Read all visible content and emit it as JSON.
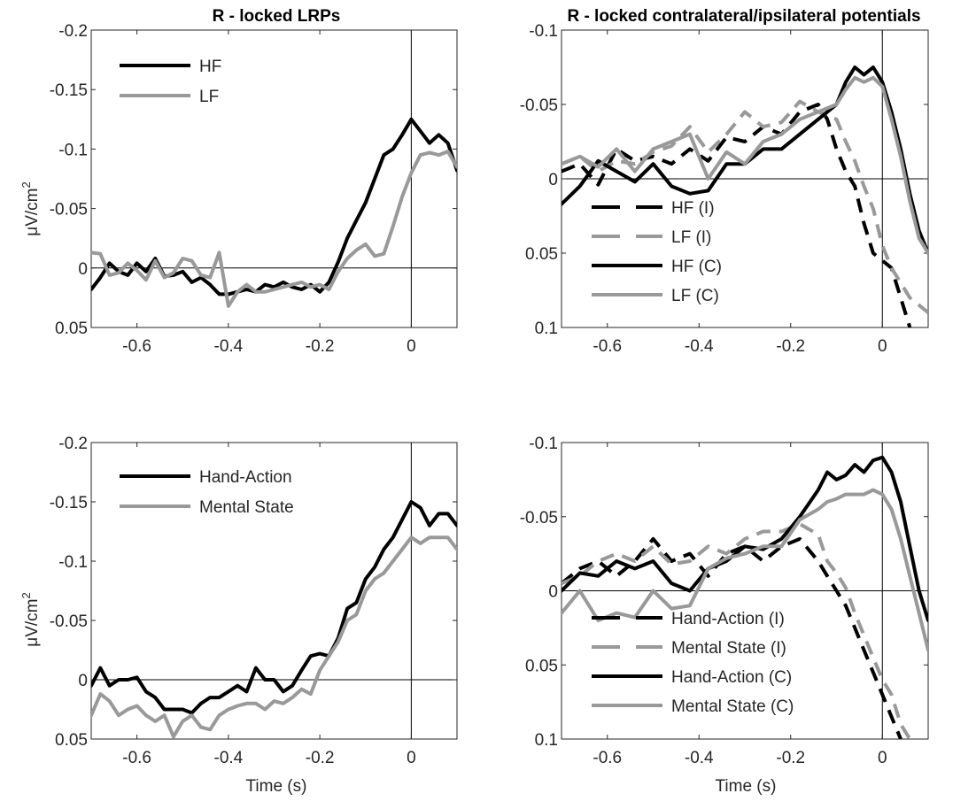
{
  "chart_data": [
    {
      "type": "line",
      "title": "R - locked LRPs",
      "xlabel": "",
      "ylabel": "μV/cm",
      "ylabel_sup": "2",
      "xlim": [
        -0.7,
        0.1
      ],
      "ylim": [
        -0.2,
        0.05
      ],
      "y_reversed": true,
      "xticks": [
        -0.6,
        -0.4,
        -0.2,
        0
      ],
      "xtick_labels": [
        "-0.6",
        "-0.4",
        "-0.2",
        "0"
      ],
      "yticks": [
        -0.2,
        -0.15,
        -0.1,
        -0.05,
        0,
        0.05
      ],
      "ytick_labels": [
        "-0.2",
        "-0.15",
        "-0.1",
        "-0.05",
        "0",
        "0.05"
      ],
      "legend_position": "top-left",
      "series": [
        {
          "name": "HF",
          "color": "#000000",
          "dash": "solid",
          "x": [
            -0.7,
            -0.68,
            -0.66,
            -0.64,
            -0.62,
            -0.6,
            -0.58,
            -0.56,
            -0.54,
            -0.52,
            -0.5,
            -0.48,
            -0.46,
            -0.44,
            -0.42,
            -0.4,
            -0.38,
            -0.36,
            -0.34,
            -0.32,
            -0.3,
            -0.28,
            -0.26,
            -0.24,
            -0.22,
            -0.2,
            -0.18,
            -0.16,
            -0.14,
            -0.12,
            -0.1,
            -0.08,
            -0.06,
            -0.04,
            -0.02,
            0,
            0.02,
            0.04,
            0.06,
            0.08,
            0.1
          ],
          "y": [
            0.018,
            0.008,
            -0.004,
            0.003,
            0.006,
            -0.004,
            0.003,
            -0.008,
            0.007,
            0.006,
            0.003,
            0.012,
            0.008,
            0.014,
            0.022,
            0.022,
            0.02,
            0.018,
            0.02,
            0.014,
            0.016,
            0.012,
            0.016,
            0.018,
            0.014,
            0.02,
            0.012,
            -0.005,
            -0.025,
            -0.04,
            -0.055,
            -0.075,
            -0.095,
            -0.1,
            -0.112,
            -0.125,
            -0.115,
            -0.105,
            -0.112,
            -0.105,
            -0.082
          ]
        },
        {
          "name": "LF",
          "color": "#999999",
          "dash": "solid",
          "x": [
            -0.7,
            -0.68,
            -0.66,
            -0.64,
            -0.62,
            -0.6,
            -0.58,
            -0.56,
            -0.54,
            -0.52,
            -0.5,
            -0.48,
            -0.46,
            -0.44,
            -0.42,
            -0.4,
            -0.38,
            -0.36,
            -0.34,
            -0.32,
            -0.3,
            -0.28,
            -0.26,
            -0.24,
            -0.22,
            -0.2,
            -0.18,
            -0.16,
            -0.14,
            -0.12,
            -0.1,
            -0.08,
            -0.06,
            -0.04,
            -0.02,
            0,
            0.02,
            0.04,
            0.06,
            0.08,
            0.1
          ],
          "y": [
            -0.013,
            -0.012,
            0.006,
            0.004,
            -0.004,
            0.002,
            0.01,
            -0.006,
            0.008,
            0.004,
            -0.008,
            -0.006,
            0.006,
            0.008,
            -0.013,
            0.032,
            0.02,
            0.014,
            0.02,
            0.02,
            0.018,
            0.016,
            0.014,
            0.012,
            0.016,
            0.014,
            0.018,
            0.003,
            -0.008,
            -0.015,
            -0.02,
            -0.01,
            -0.012,
            -0.035,
            -0.06,
            -0.08,
            -0.095,
            -0.097,
            -0.095,
            -0.098,
            -0.085
          ]
        }
      ]
    },
    {
      "type": "line",
      "title": "R - locked contralateral/ipsilateral potentials",
      "xlabel": "",
      "ylabel": "",
      "xlim": [
        -0.7,
        0.1
      ],
      "ylim": [
        -0.1,
        0.1
      ],
      "y_reversed": true,
      "xticks": [
        -0.6,
        -0.4,
        -0.2,
        0
      ],
      "xtick_labels": [
        "-0.6",
        "-0.4",
        "-0.2",
        "0"
      ],
      "yticks": [
        -0.1,
        -0.05,
        0,
        0.05,
        0.1
      ],
      "ytick_labels": [
        "-0.1",
        "-0.05",
        "0",
        "0.05",
        "0.1"
      ],
      "legend_position": "center-left",
      "series": [
        {
          "name": "HF (I)",
          "color": "#000000",
          "dash": "dashed",
          "x": [
            -0.7,
            -0.66,
            -0.62,
            -0.58,
            -0.54,
            -0.5,
            -0.46,
            -0.42,
            -0.38,
            -0.34,
            -0.3,
            -0.26,
            -0.22,
            -0.18,
            -0.14,
            -0.12,
            -0.1,
            -0.08,
            -0.06,
            -0.04,
            -0.02,
            0,
            0.02,
            0.04,
            0.06
          ],
          "y": [
            -0.005,
            -0.01,
            0.004,
            -0.02,
            -0.012,
            -0.015,
            -0.01,
            -0.02,
            -0.012,
            -0.028,
            -0.025,
            -0.035,
            -0.03,
            -0.045,
            -0.05,
            -0.04,
            -0.02,
            -0.005,
            0.005,
            0.03,
            0.05,
            0.055,
            0.06,
            0.08,
            0.1
          ]
        },
        {
          "name": "LF (I)",
          "color": "#999999",
          "dash": "dashed",
          "x": [
            -0.7,
            -0.66,
            -0.62,
            -0.58,
            -0.54,
            -0.5,
            -0.46,
            -0.42,
            -0.38,
            -0.34,
            -0.3,
            -0.26,
            -0.22,
            -0.18,
            -0.14,
            -0.1,
            -0.08,
            -0.06,
            -0.04,
            -0.02,
            0,
            0.02,
            0.04,
            0.06,
            0.08,
            0.1
          ],
          "y": [
            -0.01,
            -0.015,
            -0.005,
            -0.012,
            -0.01,
            -0.018,
            -0.022,
            -0.035,
            -0.018,
            -0.03,
            -0.045,
            -0.035,
            -0.038,
            -0.052,
            -0.045,
            -0.04,
            -0.025,
            -0.012,
            0.005,
            0.02,
            0.045,
            0.06,
            0.07,
            0.08,
            0.085,
            0.09
          ]
        },
        {
          "name": "HF (C)",
          "color": "#000000",
          "dash": "solid",
          "x": [
            -0.7,
            -0.66,
            -0.62,
            -0.58,
            -0.54,
            -0.5,
            -0.46,
            -0.42,
            -0.38,
            -0.34,
            -0.3,
            -0.26,
            -0.22,
            -0.18,
            -0.14,
            -0.1,
            -0.08,
            -0.06,
            -0.04,
            -0.02,
            0,
            0.02,
            0.04,
            0.06,
            0.08,
            0.1
          ],
          "y": [
            0.017,
            0.005,
            -0.012,
            -0.005,
            0.002,
            -0.01,
            0.005,
            0.01,
            0.008,
            -0.01,
            -0.01,
            -0.02,
            -0.02,
            -0.03,
            -0.04,
            -0.05,
            -0.065,
            -0.075,
            -0.07,
            -0.075,
            -0.065,
            -0.045,
            -0.02,
            0.01,
            0.035,
            0.05
          ]
        },
        {
          "name": "LF (C)",
          "color": "#999999",
          "dash": "solid",
          "x": [
            -0.7,
            -0.66,
            -0.62,
            -0.58,
            -0.54,
            -0.5,
            -0.46,
            -0.42,
            -0.38,
            -0.34,
            -0.3,
            -0.26,
            -0.22,
            -0.18,
            -0.14,
            -0.1,
            -0.08,
            -0.06,
            -0.04,
            -0.02,
            0,
            0.02,
            0.04,
            0.06,
            0.08,
            0.1
          ],
          "y": [
            -0.01,
            -0.015,
            -0.008,
            -0.02,
            -0.005,
            -0.02,
            -0.025,
            -0.03,
            0.0,
            -0.018,
            -0.01,
            -0.025,
            -0.03,
            -0.04,
            -0.045,
            -0.05,
            -0.06,
            -0.068,
            -0.065,
            -0.068,
            -0.062,
            -0.04,
            -0.015,
            0.015,
            0.04,
            0.05
          ]
        }
      ]
    },
    {
      "type": "line",
      "title": "",
      "xlabel": "Time (s)",
      "ylabel": "μV/cm",
      "ylabel_sup": "2",
      "xlim": [
        -0.7,
        0.1
      ],
      "ylim": [
        -0.2,
        0.05
      ],
      "y_reversed": true,
      "xticks": [
        -0.6,
        -0.4,
        -0.2,
        0
      ],
      "xtick_labels": [
        "-0.6",
        "-0.4",
        "-0.2",
        "0"
      ],
      "yticks": [
        -0.2,
        -0.15,
        -0.1,
        -0.05,
        0,
        0.05
      ],
      "ytick_labels": [
        "-0.2",
        "-0.15",
        "-0.1",
        "-0.05",
        "0",
        "0.05"
      ],
      "legend_position": "top-left",
      "series": [
        {
          "name": "Hand-Action",
          "color": "#000000",
          "dash": "solid",
          "x": [
            -0.7,
            -0.68,
            -0.66,
            -0.64,
            -0.62,
            -0.6,
            -0.58,
            -0.56,
            -0.54,
            -0.52,
            -0.5,
            -0.48,
            -0.46,
            -0.44,
            -0.42,
            -0.4,
            -0.38,
            -0.36,
            -0.34,
            -0.32,
            -0.3,
            -0.28,
            -0.26,
            -0.24,
            -0.22,
            -0.2,
            -0.18,
            -0.16,
            -0.14,
            -0.12,
            -0.1,
            -0.08,
            -0.06,
            -0.04,
            -0.02,
            0,
            0.02,
            0.04,
            0.06,
            0.08,
            0.1
          ],
          "y": [
            0.005,
            -0.01,
            0.005,
            0.0,
            0.0,
            -0.002,
            0.01,
            0.015,
            0.025,
            0.025,
            0.025,
            0.028,
            0.02,
            0.015,
            0.015,
            0.01,
            0.005,
            0.01,
            -0.01,
            0.0,
            0.0,
            0.01,
            0.005,
            -0.008,
            -0.02,
            -0.022,
            -0.02,
            -0.035,
            -0.06,
            -0.065,
            -0.085,
            -0.095,
            -0.11,
            -0.12,
            -0.135,
            -0.15,
            -0.145,
            -0.13,
            -0.14,
            -0.14,
            -0.13
          ]
        },
        {
          "name": "Mental State",
          "color": "#999999",
          "dash": "solid",
          "x": [
            -0.7,
            -0.68,
            -0.66,
            -0.64,
            -0.62,
            -0.6,
            -0.58,
            -0.56,
            -0.54,
            -0.52,
            -0.5,
            -0.48,
            -0.46,
            -0.44,
            -0.42,
            -0.4,
            -0.38,
            -0.36,
            -0.34,
            -0.32,
            -0.3,
            -0.28,
            -0.26,
            -0.24,
            -0.22,
            -0.2,
            -0.18,
            -0.16,
            -0.14,
            -0.12,
            -0.1,
            -0.08,
            -0.06,
            -0.04,
            -0.02,
            0,
            0.02,
            0.04,
            0.06,
            0.08,
            0.1
          ],
          "y": [
            0.03,
            0.012,
            0.018,
            0.03,
            0.025,
            0.022,
            0.03,
            0.035,
            0.03,
            0.048,
            0.035,
            0.03,
            0.04,
            0.042,
            0.03,
            0.025,
            0.022,
            0.02,
            0.02,
            0.025,
            0.018,
            0.02,
            0.015,
            0.008,
            0.012,
            -0.008,
            -0.02,
            -0.032,
            -0.05,
            -0.055,
            -0.075,
            -0.085,
            -0.09,
            -0.1,
            -0.11,
            -0.12,
            -0.115,
            -0.12,
            -0.12,
            -0.12,
            -0.11
          ]
        }
      ]
    },
    {
      "type": "line",
      "title": "",
      "xlabel": "Time (s)",
      "ylabel": "",
      "xlim": [
        -0.7,
        0.1
      ],
      "ylim": [
        -0.1,
        0.1
      ],
      "y_reversed": true,
      "xticks": [
        -0.6,
        -0.4,
        -0.2,
        0
      ],
      "xtick_labels": [
        "-0.6",
        "-0.4",
        "-0.2",
        "0"
      ],
      "yticks": [
        -0.1,
        -0.05,
        0,
        0.05,
        0.1
      ],
      "ytick_labels": [
        "-0.1",
        "-0.05",
        "0",
        "0.05",
        "0.1"
      ],
      "legend_position": "center-left",
      "series": [
        {
          "name": "Hand-Action (I)",
          "color": "#000000",
          "dash": "dashed",
          "x": [
            -0.7,
            -0.66,
            -0.62,
            -0.58,
            -0.54,
            -0.5,
            -0.46,
            -0.42,
            -0.38,
            -0.34,
            -0.3,
            -0.26,
            -0.22,
            -0.18,
            -0.14,
            -0.12,
            -0.1,
            -0.08,
            -0.06,
            -0.04,
            -0.02,
            0,
            0.02,
            0.04
          ],
          "y": [
            -0.005,
            -0.015,
            -0.02,
            -0.01,
            -0.02,
            -0.035,
            -0.02,
            -0.025,
            -0.01,
            -0.025,
            -0.03,
            -0.02,
            -0.03,
            -0.035,
            -0.02,
            -0.01,
            0.0,
            0.01,
            0.025,
            0.04,
            0.055,
            0.07,
            0.085,
            0.1
          ]
        },
        {
          "name": "Mental State (I)",
          "color": "#999999",
          "dash": "dashed",
          "x": [
            -0.7,
            -0.66,
            -0.62,
            -0.58,
            -0.54,
            -0.5,
            -0.46,
            -0.42,
            -0.38,
            -0.34,
            -0.3,
            -0.26,
            -0.22,
            -0.18,
            -0.14,
            -0.12,
            -0.1,
            -0.08,
            -0.06,
            -0.04,
            -0.02,
            0,
            0.02,
            0.04,
            0.06
          ],
          "y": [
            -0.005,
            -0.01,
            -0.02,
            -0.025,
            -0.02,
            -0.03,
            -0.018,
            -0.02,
            -0.03,
            -0.025,
            -0.035,
            -0.04,
            -0.04,
            -0.045,
            -0.038,
            -0.02,
            -0.012,
            -0.002,
            0.015,
            0.03,
            0.045,
            0.06,
            0.07,
            0.09,
            0.1
          ]
        },
        {
          "name": "Hand-Action (C)",
          "color": "#000000",
          "dash": "solid",
          "x": [
            -0.7,
            -0.66,
            -0.62,
            -0.58,
            -0.54,
            -0.5,
            -0.46,
            -0.42,
            -0.38,
            -0.34,
            -0.3,
            -0.26,
            -0.22,
            -0.18,
            -0.14,
            -0.12,
            -0.1,
            -0.08,
            -0.06,
            -0.04,
            -0.02,
            0,
            0.02,
            0.04,
            0.06,
            0.08,
            0.1
          ],
          "y": [
            0.0,
            -0.012,
            -0.01,
            -0.02,
            -0.015,
            -0.02,
            -0.005,
            0.0,
            -0.015,
            -0.02,
            -0.03,
            -0.028,
            -0.035,
            -0.05,
            -0.068,
            -0.08,
            -0.075,
            -0.078,
            -0.085,
            -0.08,
            -0.088,
            -0.09,
            -0.08,
            -0.06,
            -0.03,
            0.0,
            0.02
          ]
        },
        {
          "name": "Mental State (C)",
          "color": "#999999",
          "dash": "solid",
          "x": [
            -0.7,
            -0.66,
            -0.62,
            -0.58,
            -0.54,
            -0.5,
            -0.46,
            -0.42,
            -0.38,
            -0.34,
            -0.3,
            -0.26,
            -0.22,
            -0.18,
            -0.14,
            -0.12,
            -0.1,
            -0.08,
            -0.06,
            -0.04,
            -0.02,
            0,
            0.02,
            0.04,
            0.06,
            0.08,
            0.1
          ],
          "y": [
            0.015,
            0.0,
            0.02,
            0.015,
            0.018,
            0.0,
            0.012,
            0.01,
            -0.015,
            -0.022,
            -0.025,
            -0.03,
            -0.03,
            -0.048,
            -0.055,
            -0.06,
            -0.062,
            -0.065,
            -0.065,
            -0.065,
            -0.068,
            -0.065,
            -0.055,
            -0.035,
            -0.01,
            0.015,
            0.04
          ]
        }
      ]
    }
  ]
}
